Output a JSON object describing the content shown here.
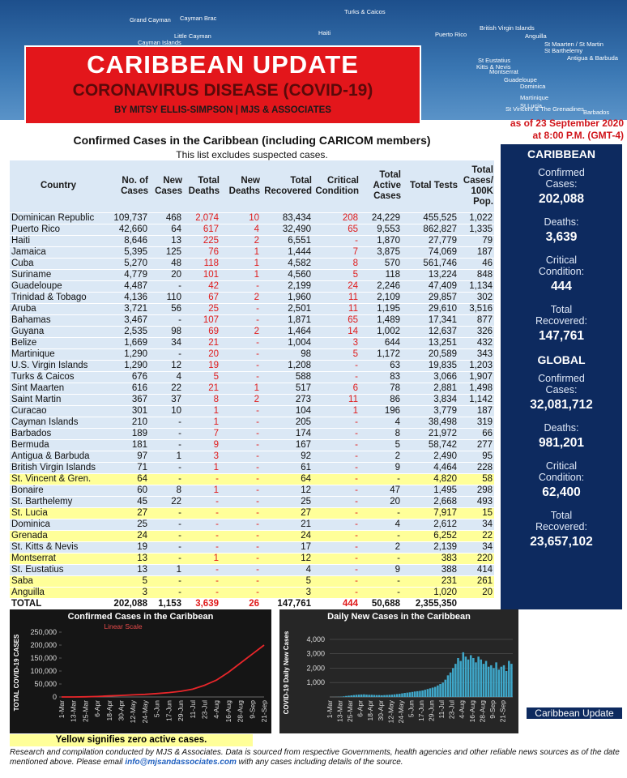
{
  "header": {
    "title": "CARIBBEAN UPDATE",
    "subtitle": "CORONAVIRUS DISEASE (COVID-19)",
    "byline": "BY MITSY ELLIS-SIMPSON | MJS & ASSOCIATES",
    "date": "as of 23 September 2020",
    "time": "at 8:00 P.M. (GMT-4)"
  },
  "map": {
    "labels": [
      "Grand Cayman",
      "Cayman Brac",
      "Little Cayman",
      "Cayman Islands",
      "Turks & Caicos",
      "Haiti",
      "Puerto Rico",
      "British Virgin Islands",
      "Anguilla",
      "St Maarten / St Martin",
      "St Barthelemy",
      "Antigua & Barbuda",
      "St Eustatius",
      "Kitts & Nevis",
      "Montserrat",
      "Guadeloupe",
      "Dominica",
      "Martinique",
      "St Lucia",
      "St Vincent & The Grenadines",
      "Barbados"
    ]
  },
  "table": {
    "title": "Confirmed Cases in the Caribbean (including CARICOM members)",
    "note": "This list excludes suspected cases.",
    "columns": [
      "Country",
      "No. of Cases",
      "New Cases",
      "Total Deaths",
      "New Deaths",
      "Total Recovered",
      "Critical Condition",
      "Total Active Cases",
      "Total Tests",
      "Total Cases/ 100K Pop."
    ],
    "rows": [
      [
        "Dominican Republic",
        "109,737",
        "468",
        "2,074",
        "10",
        "83,434",
        "208",
        "24,229",
        "455,525",
        "1,022"
      ],
      [
        "Puerto Rico",
        "42,660",
        "64",
        "617",
        "4",
        "32,490",
        "65",
        "9,553",
        "862,827",
        "1,335"
      ],
      [
        "Haiti",
        "8,646",
        "13",
        "225",
        "2",
        "6,551",
        "-",
        "1,870",
        "27,779",
        "79"
      ],
      [
        "Jamaica",
        "5,395",
        "125",
        "76",
        "1",
        "1,444",
        "7",
        "3,875",
        "74,069",
        "187"
      ],
      [
        "Cuba",
        "5,270",
        "48",
        "118",
        "1",
        "4,582",
        "8",
        "570",
        "561,746",
        "46"
      ],
      [
        "Suriname",
        "4,779",
        "20",
        "101",
        "1",
        "4,560",
        "5",
        "118",
        "13,224",
        "848"
      ],
      [
        "Guadeloupe",
        "4,487",
        "-",
        "42",
        "-",
        "2,199",
        "24",
        "2,246",
        "47,409",
        "1,134"
      ],
      [
        "Trinidad & Tobago",
        "4,136",
        "110",
        "67",
        "2",
        "1,960",
        "11",
        "2,109",
        "29,857",
        "302"
      ],
      [
        "Aruba",
        "3,721",
        "56",
        "25",
        "-",
        "2,501",
        "11",
        "1,195",
        "29,610",
        "3,516"
      ],
      [
        "Bahamas",
        "3,467",
        "-",
        "107",
        "-",
        "1,871",
        "65",
        "1,489",
        "17,341",
        "877"
      ],
      [
        "Guyana",
        "2,535",
        "98",
        "69",
        "2",
        "1,464",
        "14",
        "1,002",
        "12,637",
        "326"
      ],
      [
        "Belize",
        "1,669",
        "34",
        "21",
        "-",
        "1,004",
        "3",
        "644",
        "13,251",
        "432"
      ],
      [
        "Martinique",
        "1,290",
        "-",
        "20",
        "-",
        "98",
        "5",
        "1,172",
        "20,589",
        "343"
      ],
      [
        "U.S. Virgin Islands",
        "1,290",
        "12",
        "19",
        "-",
        "1,208",
        "-",
        "63",
        "19,835",
        "1,203"
      ],
      [
        "Turks & Caicos",
        "676",
        "4",
        "5",
        "-",
        "588",
        "-",
        "83",
        "3,066",
        "1,907"
      ],
      [
        "Sint Maarten",
        "616",
        "22",
        "21",
        "1",
        "517",
        "6",
        "78",
        "2,881",
        "1,498"
      ],
      [
        "Saint Martin",
        "367",
        "37",
        "8",
        "2",
        "273",
        "11",
        "86",
        "3,834",
        "1,142"
      ],
      [
        "Curacao",
        "301",
        "10",
        "1",
        "-",
        "104",
        "1",
        "196",
        "3,779",
        "187"
      ],
      [
        "Cayman Islands",
        "210",
        "-",
        "1",
        "-",
        "205",
        "-",
        "4",
        "38,498",
        "319"
      ],
      [
        "Barbados",
        "189",
        "-",
        "7",
        "-",
        "174",
        "-",
        "8",
        "21,972",
        "66"
      ],
      [
        "Bermuda",
        "181",
        "-",
        "9",
        "-",
        "167",
        "-",
        "5",
        "58,742",
        "277"
      ],
      [
        "Antigua & Barbuda",
        "97",
        "1",
        "3",
        "-",
        "92",
        "-",
        "2",
        "2,490",
        "95"
      ],
      [
        "British Virgin Islands",
        "71",
        "-",
        "1",
        "-",
        "61",
        "-",
        "9",
        "4,464",
        "228"
      ],
      [
        "St. Vincent & Gren.",
        "64",
        "-",
        "-",
        "-",
        "64",
        "-",
        "-",
        "4,820",
        "58"
      ],
      [
        "Bonaire",
        "60",
        "8",
        "1",
        "-",
        "12",
        "-",
        "47",
        "1,495",
        "298"
      ],
      [
        "St. Barthelemy",
        "45",
        "22",
        "-",
        "-",
        "25",
        "-",
        "20",
        "2,668",
        "493"
      ],
      [
        "St. Lucia",
        "27",
        "-",
        "-",
        "-",
        "27",
        "-",
        "-",
        "7,917",
        "15"
      ],
      [
        "Dominica",
        "25",
        "-",
        "-",
        "-",
        "21",
        "-",
        "4",
        "2,612",
        "34"
      ],
      [
        "Grenada",
        "24",
        "-",
        "-",
        "-",
        "24",
        "-",
        "-",
        "6,252",
        "22"
      ],
      [
        "St. Kitts & Nevis",
        "19",
        "-",
        "-",
        "-",
        "17",
        "-",
        "2",
        "2,139",
        "34"
      ],
      [
        "Montserrat",
        "13",
        "-",
        "1",
        "-",
        "12",
        "-",
        "-",
        "383",
        "220"
      ],
      [
        "St. Eustatius",
        "13",
        "1",
        "-",
        "-",
        "4",
        "-",
        "9",
        "388",
        "414"
      ],
      [
        "Saba",
        "5",
        "-",
        "-",
        "-",
        "5",
        "-",
        "-",
        "231",
        "261"
      ],
      [
        "Anguilla",
        "3",
        "-",
        "-",
        "-",
        "3",
        "-",
        "-",
        "1,020",
        "20"
      ]
    ],
    "total": [
      "TOTAL",
      "202,088",
      "1,153",
      "3,639",
      "26",
      "147,761",
      "444",
      "50,688",
      "2,355,350"
    ]
  },
  "sidebar": [
    {
      "heading": "CARIBBEAN",
      "stats": [
        {
          "label": "Confirmed Cases:",
          "value": "202,088"
        },
        {
          "label": "Deaths:",
          "value": "3,639"
        },
        {
          "label": "Critical Condition:",
          "value": "444"
        },
        {
          "label": "Total Recovered:",
          "value": "147,761"
        }
      ]
    },
    {
      "heading": "GLOBAL",
      "stats": [
        {
          "label": "Confirmed Cases:",
          "value": "32,081,712"
        },
        {
          "label": "Deaths:",
          "value": "981,201"
        },
        {
          "label": "Critical Condition:",
          "value": "62,400"
        },
        {
          "label": "Total Recovered:",
          "value": "23,657,102"
        }
      ]
    }
  ],
  "chart_data": [
    {
      "type": "line",
      "title": "Confirmed Cases in the Caribbean",
      "annotation": "Linear Scale",
      "y_label": "TOTAL COVID-19 CASES",
      "categories": [
        "1-Mar",
        "13-Mar",
        "25-Mar",
        "6-Apr",
        "18-Apr",
        "30-Apr",
        "12-May",
        "24-May",
        "5-Jun",
        "17-Jun",
        "29-Jun",
        "11-Jul",
        "23-Jul",
        "4-Aug",
        "16-Aug",
        "28-Aug",
        "9-Sep",
        "21-Sep"
      ],
      "values": [
        0,
        100,
        600,
        2000,
        4000,
        6000,
        8000,
        10000,
        13000,
        17000,
        22000,
        30000,
        45000,
        65000,
        95000,
        130000,
        165000,
        200000
      ],
      "color": "#e8262a",
      "ylim": [
        0,
        250000
      ],
      "yticks": [
        0,
        {
          "value": 50000,
          "label": "50,000"
        },
        {
          "value": 100000,
          "label": "100,000"
        },
        {
          "value": 150000,
          "label": "150,000"
        },
        {
          "value": 200000,
          "label": "200,000"
        },
        {
          "value": 250000,
          "label": "250,000"
        }
      ],
      "grid": false
    },
    {
      "type": "bar",
      "title": "Daily New Cases in the Caribbean",
      "y_label": "COVID-19 Daily New Cases",
      "categories": [
        "1-Mar",
        null,
        null,
        null,
        "13-Mar",
        null,
        null,
        null,
        "25-Mar",
        null,
        null,
        null,
        "6-Apr",
        null,
        null,
        null,
        "18-Apr",
        null,
        null,
        null,
        "30-Apr",
        null,
        null,
        null,
        "12-May",
        null,
        null,
        null,
        "24-May",
        null,
        null,
        null,
        "5-Jun",
        null,
        null,
        null,
        "17-Jun",
        null,
        null,
        null,
        "29-Jun",
        null,
        null,
        null,
        "11-Jul",
        null,
        null,
        null,
        "23-Jul",
        null,
        null,
        null,
        "4-Aug",
        null,
        null,
        null,
        "16-Aug",
        null,
        null,
        null,
        "28-Aug",
        null,
        null,
        null,
        "9-Sep",
        null,
        null,
        null,
        "21-Sep",
        null,
        null,
        null
      ],
      "values": [
        0,
        2,
        5,
        10,
        20,
        40,
        70,
        90,
        110,
        130,
        150,
        160,
        170,
        180,
        160,
        150,
        150,
        140,
        130,
        130,
        120,
        130,
        140,
        150,
        160,
        180,
        200,
        220,
        250,
        280,
        300,
        320,
        350,
        380,
        400,
        420,
        450,
        500,
        550,
        600,
        650,
        700,
        800,
        900,
        1000,
        1200,
        1500,
        1700,
        2000,
        2300,
        2700,
        2500,
        3100,
        2800,
        2600,
        2900,
        2700,
        2400,
        2800,
        2600,
        2300,
        2500,
        2100,
        2200,
        2000,
        2400,
        1900,
        2100,
        2200,
        1800,
        2500,
        2300
      ],
      "color": "#3fa7c9",
      "ylim": [
        0,
        4500
      ],
      "yticks": [
        {
          "value": 1000,
          "label": "1,000"
        },
        {
          "value": 2000,
          "label": "2,000"
        },
        {
          "value": 3000,
          "label": "3,000"
        },
        {
          "value": 4000,
          "label": "4,000"
        }
      ],
      "grid": true
    }
  ],
  "logo": {
    "text": "Caribbean Update"
  },
  "footer": {
    "legend": "Yellow signifies zero active cases.",
    "note_before": "Research and compilation conducted by MJS & Associates. Data is sourced from respective Governments, health agencies and other reliable news sources as of the date mentioned above. Please email ",
    "email": "info@mjsandassociates.com",
    "note_after": " with any cases including details of the source."
  }
}
